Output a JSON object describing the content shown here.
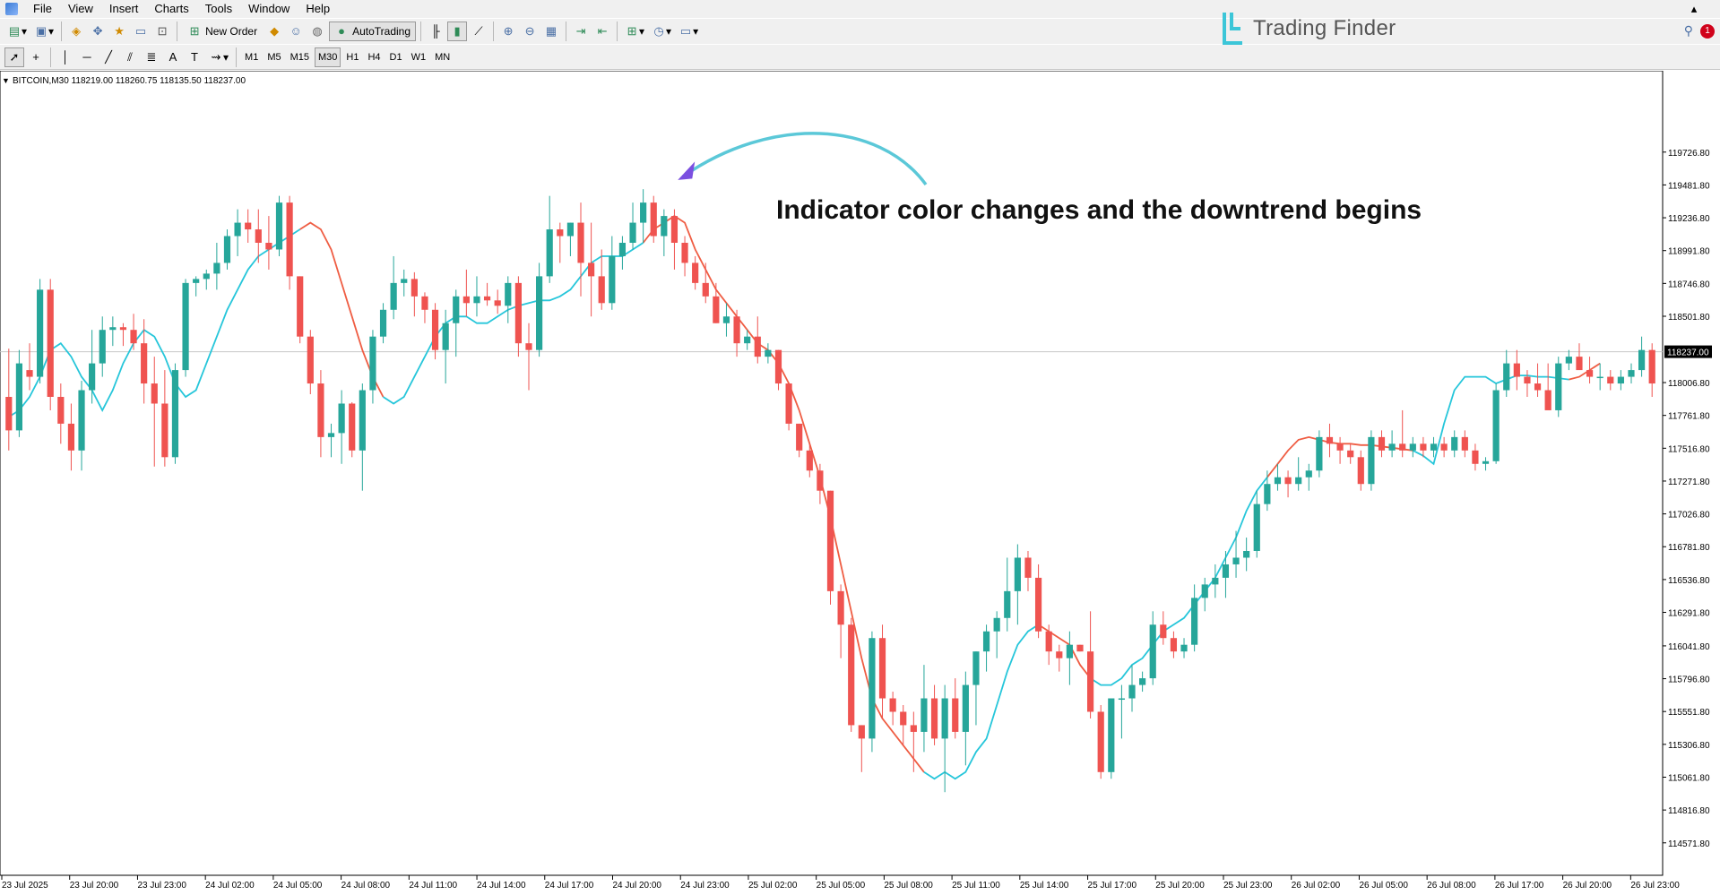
{
  "menu": [
    "File",
    "View",
    "Insert",
    "Charts",
    "Tools",
    "Window",
    "Help"
  ],
  "toolbar": {
    "new_order_label": "New Order",
    "autotrading_label": "AutoTrading",
    "timeframes": [
      "M1",
      "M5",
      "M15",
      "M30",
      "H1",
      "H4",
      "D1",
      "W1",
      "MN"
    ],
    "active_timeframe": "M30"
  },
  "brand": {
    "name": "Trading Finder"
  },
  "window": {
    "notification_count": "1"
  },
  "chart_info": {
    "header": "BITCOIN,M30  118219.00 118260.75 118135.50 118237.00"
  },
  "annotation": {
    "text": "Indicator color changes and the downtrend begins"
  },
  "colors": {
    "bull": "#26a69a",
    "bear": "#ef5350",
    "ma_up": "#26c6da",
    "ma_down": "#ef5d43",
    "arrow": "#5bc8d8",
    "arrow_head": "#7b4fe0",
    "price_tag_bg": "#000000"
  },
  "chart_data": {
    "type": "candlestick",
    "symbol": "BITCOIN",
    "timeframe": "M30",
    "ylim": [
      114450,
      120200
    ],
    "current_price": "118237.00",
    "y_ticks": [
      "119726.80",
      "119481.80",
      "119236.80",
      "118991.80",
      "118746.80",
      "118501.80",
      "118237.00",
      "118006.80",
      "117761.80",
      "117516.80",
      "117271.80",
      "117026.80",
      "116781.80",
      "116536.80",
      "116291.80",
      "116041.80",
      "115796.80",
      "115551.80",
      "115306.80",
      "115061.80",
      "114816.80",
      "114571.80"
    ],
    "x_ticks": [
      "23 Jul 2025",
      "23 Jul 20:00",
      "23 Jul 23:00",
      "24 Jul 02:00",
      "24 Jul 05:00",
      "24 Jul 08:00",
      "24 Jul 11:00",
      "24 Jul 14:00",
      "24 Jul 17:00",
      "24 Jul 20:00",
      "24 Jul 23:00",
      "25 Jul 02:00",
      "25 Jul 05:00",
      "25 Jul 08:00",
      "25 Jul 11:00",
      "25 Jul 14:00",
      "25 Jul 17:00",
      "25 Jul 20:00",
      "25 Jul 23:00",
      "26 Jul 02:00",
      "26 Jul 05:00",
      "26 Jul 08:00",
      "26 Jul 17:00",
      "26 Jul 20:00",
      "26 Jul 23:00"
    ],
    "candles": [
      [
        117900,
        118260,
        117500,
        117650
      ],
      [
        117650,
        118250,
        117600,
        118150
      ],
      [
        118100,
        118300,
        117950,
        118050
      ],
      [
        118050,
        118780,
        118000,
        118700
      ],
      [
        118700,
        118780,
        117800,
        117900
      ],
      [
        117900,
        118000,
        117550,
        117700
      ],
      [
        117700,
        117850,
        117350,
        117500
      ],
      [
        117500,
        118020,
        117350,
        117950
      ],
      [
        117950,
        118400,
        117850,
        118150
      ],
      [
        118150,
        118500,
        118050,
        118400
      ],
      [
        118400,
        118500,
        118280,
        118420
      ],
      [
        118420,
        118450,
        118280,
        118400
      ],
      [
        118400,
        118520,
        118250,
        118300
      ],
      [
        118300,
        118480,
        117850,
        118000
      ],
      [
        118000,
        118200,
        117380,
        117850
      ],
      [
        117850,
        118100,
        117380,
        117450
      ],
      [
        117450,
        118150,
        117400,
        118100
      ],
      [
        118100,
        118780,
        118050,
        118750
      ],
      [
        118750,
        118800,
        118650,
        118780
      ],
      [
        118780,
        118850,
        118700,
        118820
      ],
      [
        118820,
        119050,
        118700,
        118900
      ],
      [
        118900,
        119150,
        118850,
        119100
      ],
      [
        119100,
        119300,
        118950,
        119200
      ],
      [
        119200,
        119300,
        119050,
        119150
      ],
      [
        119150,
        119300,
        118900,
        119050
      ],
      [
        119050,
        119250,
        118850,
        119000
      ],
      [
        119000,
        119400,
        118950,
        119350
      ],
      [
        119350,
        119400,
        118700,
        118800
      ],
      [
        118800,
        118800,
        118300,
        118350
      ],
      [
        118350,
        118400,
        117920,
        118000
      ],
      [
        118000,
        118100,
        117450,
        117600
      ],
      [
        117600,
        117700,
        117450,
        117630
      ],
      [
        117630,
        117950,
        117400,
        117850
      ],
      [
        117850,
        117860,
        117450,
        117500
      ],
      [
        117500,
        118000,
        117200,
        117950
      ],
      [
        117950,
        118400,
        117850,
        118350
      ],
      [
        118350,
        118600,
        118300,
        118550
      ],
      [
        118550,
        118950,
        118480,
        118750
      ],
      [
        118750,
        118850,
        118650,
        118780
      ],
      [
        118780,
        118830,
        118500,
        118650
      ],
      [
        118650,
        118680,
        118450,
        118550
      ],
      [
        118550,
        118600,
        118180,
        118250
      ],
      [
        118250,
        118550,
        118000,
        118450
      ],
      [
        118450,
        118700,
        118200,
        118650
      ],
      [
        118650,
        118850,
        118500,
        118600
      ],
      [
        118600,
        118800,
        118500,
        118650
      ],
      [
        118650,
        118750,
        118580,
        118620
      ],
      [
        118620,
        118700,
        118520,
        118580
      ],
      [
        118580,
        118800,
        118450,
        118750
      ],
      [
        118750,
        118800,
        118200,
        118300
      ],
      [
        118300,
        118450,
        117950,
        118250
      ],
      [
        118250,
        118900,
        118200,
        118800
      ],
      [
        118800,
        119400,
        118750,
        119150
      ],
      [
        119150,
        119200,
        118900,
        119100
      ],
      [
        119100,
        119200,
        118950,
        119200
      ],
      [
        119200,
        119350,
        118650,
        118900
      ],
      [
        118900,
        119200,
        118500,
        118800
      ],
      [
        118800,
        119000,
        118550,
        118600
      ],
      [
        118600,
        119100,
        118550,
        118950
      ],
      [
        118950,
        119100,
        118850,
        119050
      ],
      [
        119050,
        119350,
        119000,
        119200
      ],
      [
        119200,
        119450,
        119050,
        119350
      ],
      [
        119350,
        119400,
        119050,
        119100
      ],
      [
        119100,
        119300,
        118950,
        119250
      ],
      [
        119250,
        119300,
        118850,
        119050
      ],
      [
        119050,
        119100,
        118800,
        118900
      ],
      [
        118900,
        118950,
        118700,
        118750
      ],
      [
        118750,
        118900,
        118600,
        118650
      ],
      [
        118650,
        118750,
        118450,
        118450
      ],
      [
        118450,
        118600,
        118350,
        118500
      ],
      [
        118500,
        118550,
        118200,
        118300
      ],
      [
        118300,
        118400,
        118250,
        118350
      ],
      [
        118350,
        118500,
        118150,
        118200
      ],
      [
        118200,
        118300,
        118150,
        118250
      ],
      [
        118250,
        118250,
        117950,
        118000
      ],
      [
        118000,
        118000,
        117650,
        117700
      ],
      [
        117700,
        117700,
        117450,
        117500
      ],
      [
        117500,
        117550,
        117300,
        117350
      ],
      [
        117350,
        117400,
        117100,
        117200
      ],
      [
        117200,
        117200,
        116350,
        116450
      ],
      [
        116450,
        116500,
        115950,
        116200
      ],
      [
        116200,
        116250,
        115400,
        115450
      ],
      [
        115450,
        115450,
        115100,
        115350
      ],
      [
        115350,
        116150,
        115250,
        116100
      ],
      [
        116100,
        116200,
        115500,
        115650
      ],
      [
        115650,
        115700,
        115450,
        115550
      ],
      [
        115550,
        115600,
        115300,
        115450
      ],
      [
        115450,
        115550,
        115100,
        115400
      ],
      [
        115400,
        115900,
        115250,
        115650
      ],
      [
        115650,
        115750,
        115300,
        115350
      ],
      [
        115350,
        115750,
        114950,
        115650
      ],
      [
        115650,
        115800,
        115350,
        115400
      ],
      [
        115400,
        115850,
        115150,
        115750
      ],
      [
        115750,
        116000,
        115450,
        116000
      ],
      [
        116000,
        116200,
        115850,
        116150
      ],
      [
        116150,
        116300,
        115950,
        116250
      ],
      [
        116250,
        116700,
        116150,
        116450
      ],
      [
        116450,
        116800,
        116200,
        116700
      ],
      [
        116700,
        116750,
        116450,
        116550
      ],
      [
        116550,
        116650,
        116100,
        116150
      ],
      [
        116150,
        116200,
        115900,
        116000
      ],
      [
        116000,
        116050,
        115850,
        115950
      ],
      [
        115950,
        116150,
        115750,
        116050
      ],
      [
        116050,
        116050,
        116000,
        116000
      ],
      [
        116000,
        116300,
        115500,
        115550
      ],
      [
        115550,
        115600,
        115050,
        115100
      ],
      [
        115100,
        115650,
        115050,
        115650
      ],
      [
        115650,
        115750,
        115350,
        115650
      ],
      [
        115650,
        115900,
        115550,
        115750
      ],
      [
        115750,
        115850,
        115700,
        115800
      ],
      [
        115800,
        116300,
        115750,
        116200
      ],
      [
        116200,
        116300,
        116050,
        116100
      ],
      [
        116100,
        116150,
        115950,
        116000
      ],
      [
        116000,
        116100,
        115950,
        116050
      ],
      [
        116050,
        116500,
        116000,
        116400
      ],
      [
        116400,
        116550,
        116300,
        116500
      ],
      [
        116500,
        116650,
        116400,
        116550
      ],
      [
        116550,
        116750,
        116400,
        116650
      ],
      [
        116650,
        116900,
        116550,
        116700
      ],
      [
        116700,
        116850,
        116600,
        116750
      ],
      [
        116750,
        117200,
        116700,
        117100
      ],
      [
        117100,
        117350,
        117050,
        117250
      ],
      [
        117250,
        117400,
        117200,
        117300
      ],
      [
        117300,
        117350,
        117150,
        117250
      ],
      [
        117250,
        117450,
        117200,
        117300
      ],
      [
        117300,
        117400,
        117200,
        117350
      ],
      [
        117350,
        117650,
        117300,
        117600
      ],
      [
        117600,
        117700,
        117450,
        117550
      ],
      [
        117550,
        117600,
        117400,
        117500
      ],
      [
        117500,
        117550,
        117400,
        117450
      ],
      [
        117450,
        117500,
        117200,
        117250
      ],
      [
        117250,
        117650,
        117200,
        117600
      ],
      [
        117600,
        117650,
        117450,
        117500
      ],
      [
        117500,
        117650,
        117450,
        117550
      ],
      [
        117550,
        117800,
        117450,
        117500
      ],
      [
        117500,
        117600,
        117450,
        117550
      ],
      [
        117550,
        117600,
        117450,
        117500
      ],
      [
        117500,
        117600,
        117450,
        117550
      ],
      [
        117550,
        117600,
        117450,
        117500
      ],
      [
        117500,
        117650,
        117450,
        117600
      ],
      [
        117600,
        117650,
        117450,
        117500
      ],
      [
        117500,
        117550,
        117350,
        117400
      ],
      [
        117400,
        117450,
        117350,
        117420
      ],
      [
        117420,
        118000,
        117400,
        117950
      ],
      [
        117950,
        118250,
        117900,
        118150
      ],
      [
        118150,
        118250,
        117950,
        118050
      ],
      [
        118050,
        118100,
        117900,
        118000
      ],
      [
        118000,
        118150,
        117900,
        117950
      ],
      [
        117950,
        118150,
        117850,
        117800
      ],
      [
        117800,
        118200,
        117750,
        118150
      ],
      [
        118150,
        118250,
        118100,
        118200
      ],
      [
        118200,
        118300,
        118150,
        118100
      ],
      [
        118100,
        118200,
        118000,
        118050
      ],
      [
        118050,
        118150,
        117950,
        118050
      ],
      [
        118050,
        118100,
        117950,
        118000
      ],
      [
        118000,
        118100,
        117950,
        118050
      ],
      [
        118050,
        118150,
        118000,
        118100
      ],
      [
        118100,
        118350,
        118050,
        118250
      ],
      [
        118250,
        118300,
        117900,
        118000
      ]
    ],
    "ma": [
      117750,
      117800,
      117900,
      118050,
      118250,
      118300,
      118200,
      118050,
      117950,
      117800,
      117950,
      118150,
      118300,
      118400,
      118350,
      118200,
      118000,
      117900,
      117950,
      118150,
      118350,
      118550,
      118700,
      118850,
      118950,
      119000,
      119050,
      119100,
      119150,
      119200,
      119150,
      119000,
      118750,
      118500,
      118250,
      118050,
      117900,
      117850,
      117900,
      118050,
      118200,
      118350,
      118450,
      118500,
      118500,
      118450,
      118450,
      118500,
      118550,
      118580,
      118600,
      118620,
      118620,
      118650,
      118700,
      118800,
      118900,
      118950,
      118950,
      118950,
      119000,
      119050,
      119150,
      119200,
      119250,
      119200,
      119000,
      118850,
      118700,
      118600,
      118500,
      118400,
      118300,
      118250,
      118150,
      118000,
      117800,
      117550,
      117300,
      117000,
      116650,
      116300,
      115950,
      115650,
      115500,
      115400,
      115300,
      115200,
      115100,
      115050,
      115100,
      115050,
      115100,
      115250,
      115350,
      115600,
      115850,
      116050,
      116150,
      116200,
      116150,
      116100,
      116050,
      115900,
      115800,
      115750,
      115750,
      115800,
      115900,
      115950,
      116050,
      116150,
      116200,
      116250,
      116350,
      116450,
      116550,
      116700,
      116850,
      117050,
      117200,
      117300,
      117400,
      117500,
      117580,
      117600,
      117580,
      117560,
      117550,
      117550,
      117540,
      117540,
      117530,
      117520,
      117510,
      117500,
      117460,
      117400,
      117700,
      117950,
      118050,
      118050,
      118050,
      118000,
      118030,
      118060,
      118060,
      118050,
      118050,
      118040,
      118030,
      118050,
      118100,
      118150
    ],
    "ma_trend_segments": [
      {
        "from": 0,
        "to": 25,
        "trend": "up"
      },
      {
        "from": 25,
        "to": 28,
        "trend": "up"
      },
      {
        "from": 28,
        "to": 36,
        "trend": "down"
      },
      {
        "from": 36,
        "to": 61,
        "trend": "up"
      },
      {
        "from": 61,
        "to": 88,
        "trend": "down"
      },
      {
        "from": 88,
        "to": 99,
        "trend": "up"
      },
      {
        "from": 99,
        "to": 104,
        "trend": "down"
      },
      {
        "from": 104,
        "to": 121,
        "trend": "up"
      },
      {
        "from": 121,
        "to": 135,
        "trend": "down"
      },
      {
        "from": 135,
        "to": 150,
        "trend": "up"
      },
      {
        "from": 150,
        "to": 153,
        "trend": "down"
      }
    ]
  }
}
